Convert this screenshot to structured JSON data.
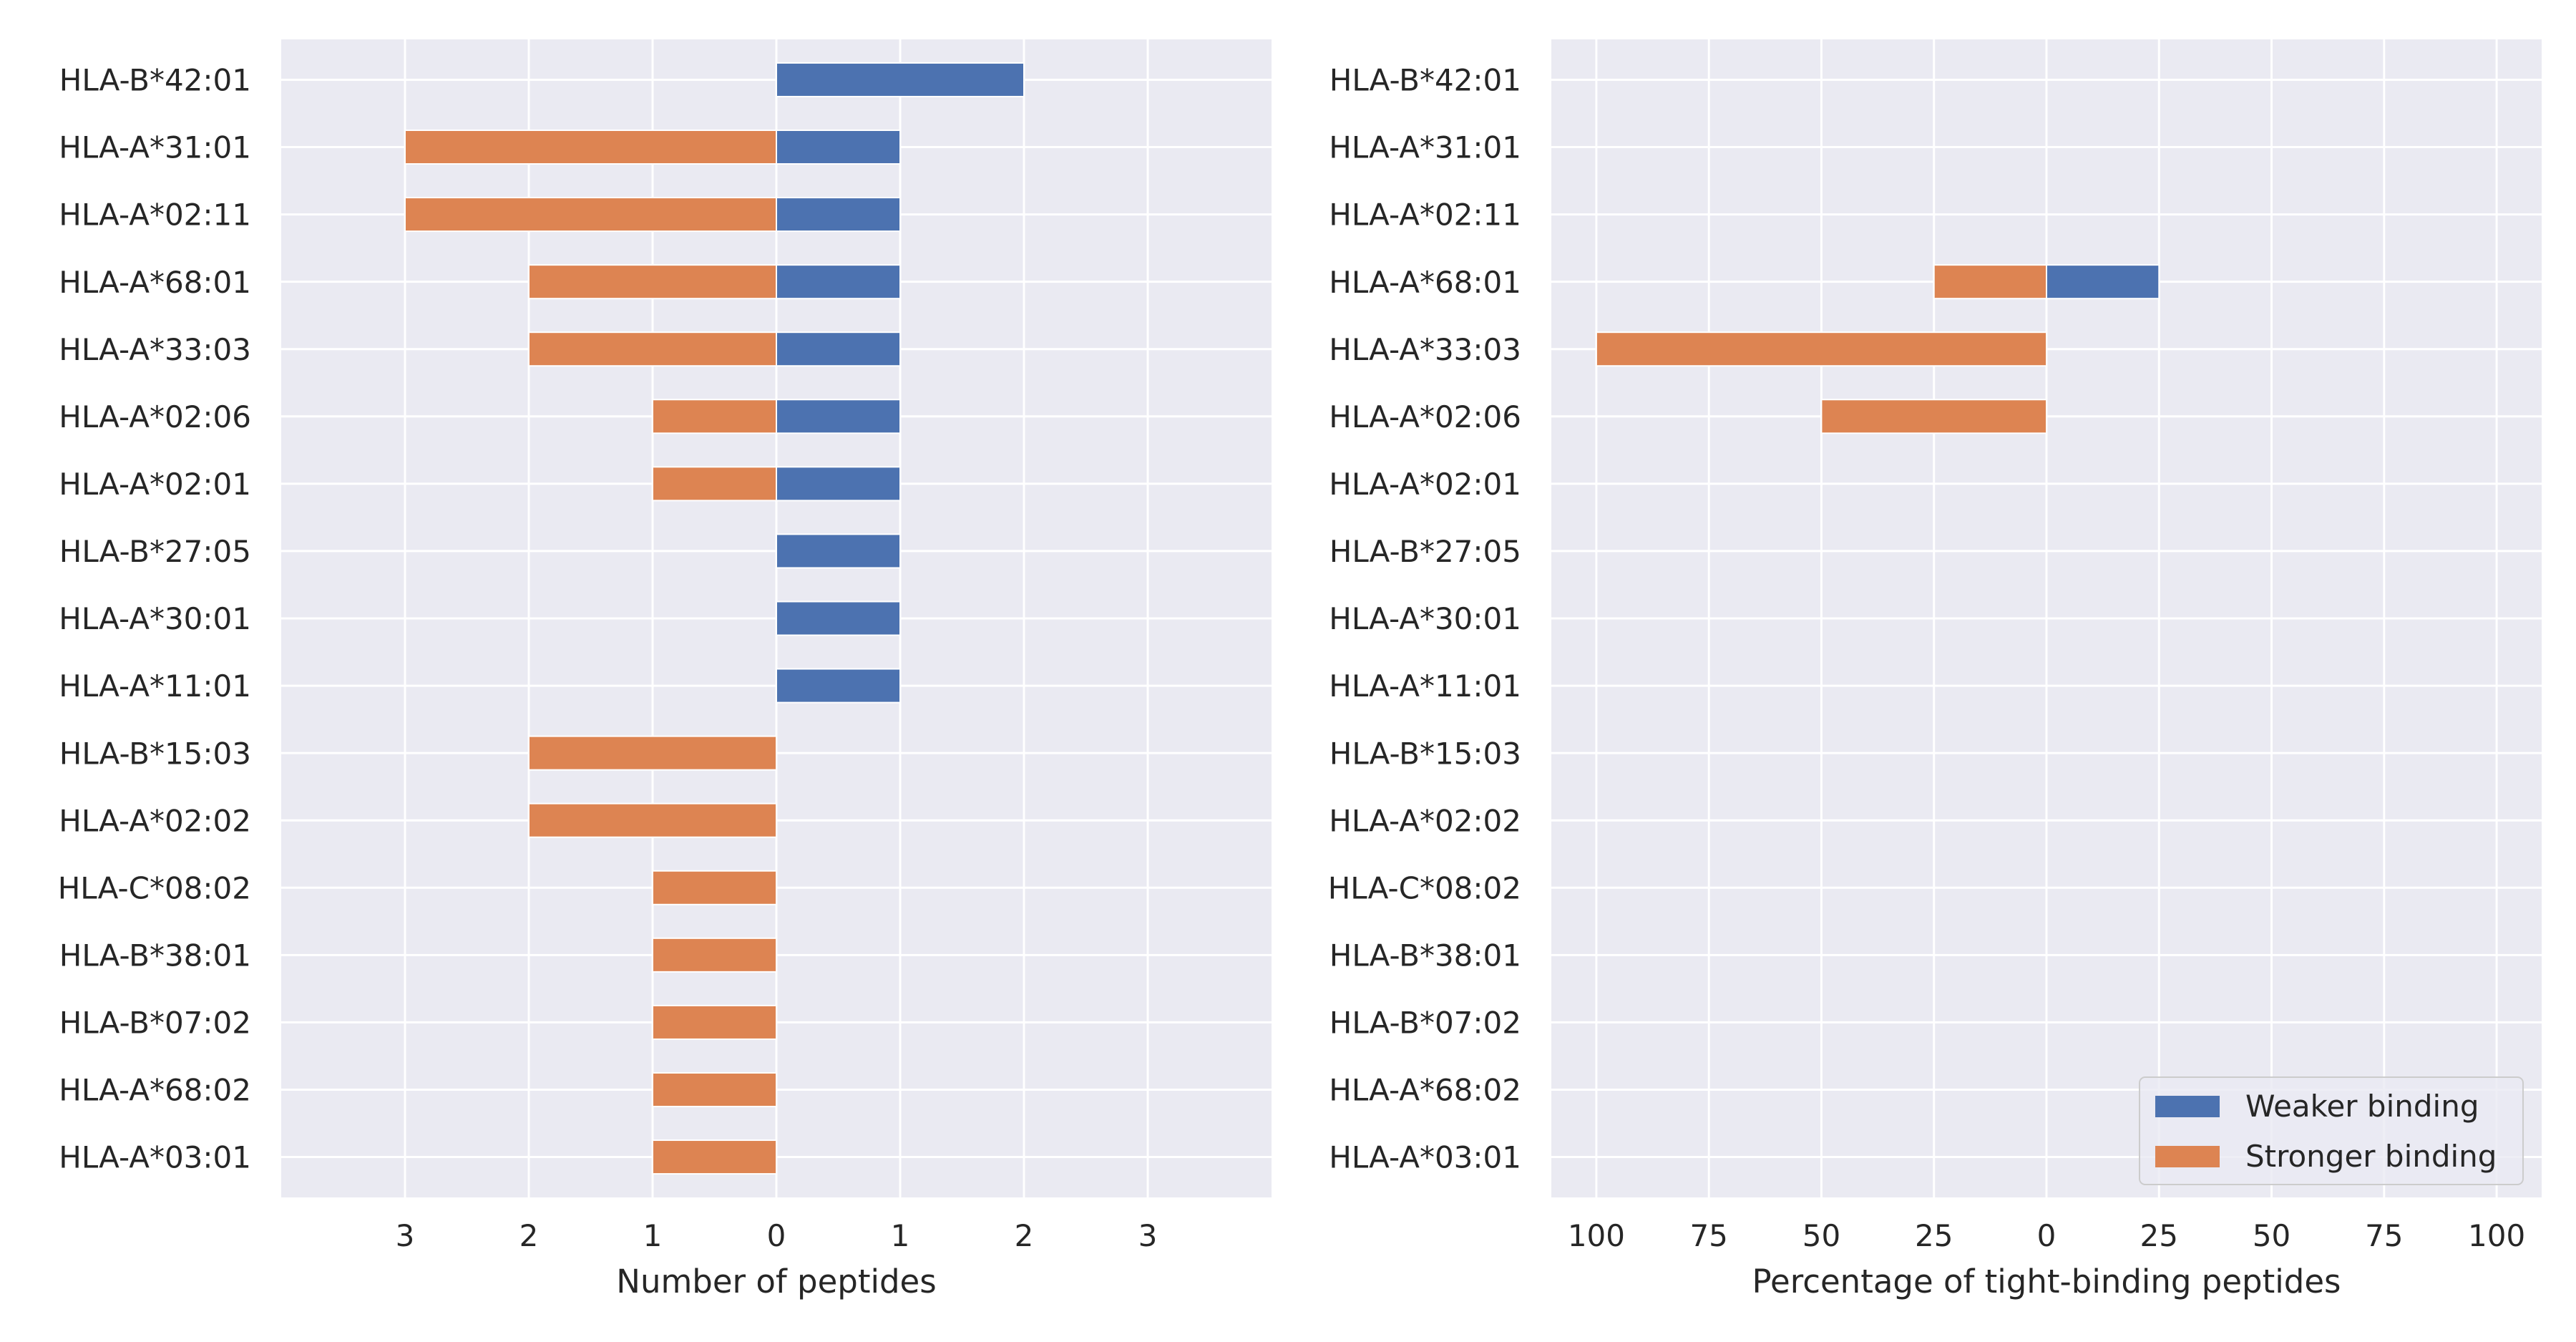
{
  "colors": {
    "background": "#eaeaf2",
    "grid": "#ffffff",
    "weaker": "#4c72b0",
    "stronger": "#dd8452",
    "text": "#262626"
  },
  "legend": {
    "placement": "lower-right",
    "entries": [
      "Weaker binding",
      "Stronger binding"
    ]
  },
  "chart_data": [
    {
      "type": "bar",
      "orientation": "horizontal-diverging",
      "xlabel": "Number of peptides",
      "xlim": [
        -4,
        4
      ],
      "xtick_values": [
        -3,
        -2,
        -1,
        0,
        1,
        2,
        3
      ],
      "xtick_labels": [
        "3",
        "2",
        "1",
        "0",
        "1",
        "2",
        "3"
      ],
      "grid": true,
      "categories": [
        "HLA-B*42:01",
        "HLA-A*31:01",
        "HLA-A*02:11",
        "HLA-A*68:01",
        "HLA-A*33:03",
        "HLA-A*02:06",
        "HLA-A*02:01",
        "HLA-B*27:05",
        "HLA-A*30:01",
        "HLA-A*11:01",
        "HLA-B*15:03",
        "HLA-A*02:02",
        "HLA-C*08:02",
        "HLA-B*38:01",
        "HLA-B*07:02",
        "HLA-A*68:02",
        "HLA-A*03:01"
      ],
      "series": [
        {
          "name": "Weaker binding",
          "values": [
            2,
            1,
            1,
            1,
            1,
            1,
            1,
            1,
            1,
            1,
            0,
            0,
            0,
            0,
            0,
            0,
            0
          ]
        },
        {
          "name": "Stronger binding",
          "values": [
            0,
            3,
            3,
            2,
            2,
            1,
            1,
            0,
            0,
            0,
            2,
            2,
            1,
            1,
            1,
            1,
            1
          ]
        }
      ]
    },
    {
      "type": "bar",
      "orientation": "horizontal-diverging",
      "xlabel": "Percentage of tight-binding peptides",
      "xlim": [
        -110,
        110
      ],
      "xtick_values": [
        -100,
        -75,
        -50,
        -25,
        0,
        25,
        50,
        75,
        100
      ],
      "xtick_labels": [
        "100",
        "75",
        "50",
        "25",
        "0",
        "25",
        "50",
        "75",
        "100"
      ],
      "grid": true,
      "categories": [
        "HLA-B*42:01",
        "HLA-A*31:01",
        "HLA-A*02:11",
        "HLA-A*68:01",
        "HLA-A*33:03",
        "HLA-A*02:06",
        "HLA-A*02:01",
        "HLA-B*27:05",
        "HLA-A*30:01",
        "HLA-A*11:01",
        "HLA-B*15:03",
        "HLA-A*02:02",
        "HLA-C*08:02",
        "HLA-B*38:01",
        "HLA-B*07:02",
        "HLA-A*68:02",
        "HLA-A*03:01"
      ],
      "series": [
        {
          "name": "Weaker binding",
          "values": [
            0,
            0,
            0,
            25,
            0,
            0,
            0,
            0,
            0,
            0,
            0,
            0,
            0,
            0,
            0,
            0,
            0
          ]
        },
        {
          "name": "Stronger binding",
          "values": [
            0,
            0,
            0,
            25,
            100,
            50,
            0,
            0,
            0,
            0,
            0,
            0,
            0,
            0,
            0,
            0,
            0
          ]
        }
      ]
    }
  ]
}
